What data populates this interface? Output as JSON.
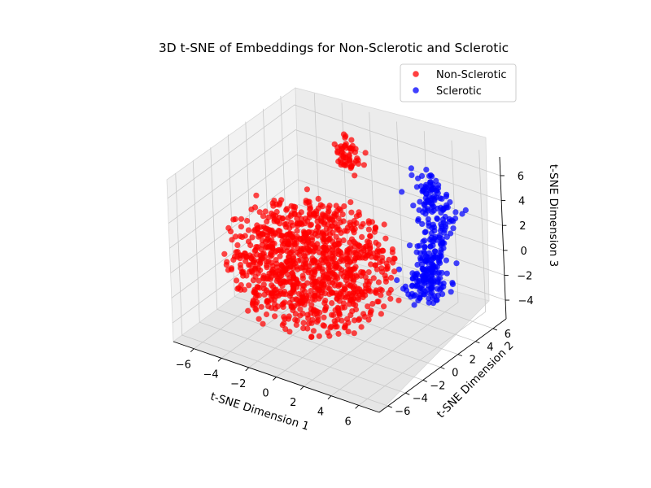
{
  "chart_data": {
    "type": "scatter",
    "title": "3D t-SNE of Embeddings for Non-Sclerotic and Sclerotic",
    "xlabel": "t-SNE Dimension 1",
    "ylabel": "t-SNE Dimension 2",
    "zlabel": "t-SNE Dimension 3",
    "xlim": [
      -7.5,
      7.5
    ],
    "ylim": [
      -7,
      7.5
    ],
    "zlim": [
      -5.5,
      7.5
    ],
    "xticks": [
      -6,
      -4,
      -2,
      0,
      2,
      4,
      6
    ],
    "yticks": [
      -6,
      -4,
      -2,
      0,
      2,
      4,
      6
    ],
    "zticks": [
      -4,
      -2,
      0,
      2,
      4,
      6
    ],
    "grid": true,
    "legend": {
      "position": "top-right",
      "entries": [
        "Non-Sclerotic",
        "Sclerotic"
      ]
    },
    "series": [
      {
        "name": "Non-Sclerotic",
        "color": "#ff0000",
        "approx_count": 1100,
        "distribution": "roughly spherical blob, radius about 6, centered near (x=-1, y=-1, z=0), with a small dense cluster near (x=-3, y=6.5, z=4)",
        "points": [
          [
            -6.2,
            -2.1,
            1.3
          ],
          [
            -5.4,
            1.2,
            -0.8
          ],
          [
            -4.8,
            -4.1,
            2.2
          ],
          [
            -4.1,
            2.8,
            -2.4
          ],
          [
            -3.6,
            -0.5,
            3.6
          ],
          [
            -3.1,
            4.2,
            1.1
          ],
          [
            -2.7,
            -5.2,
            -1.7
          ],
          [
            -2.2,
            0.9,
            -3.9
          ],
          [
            -1.8,
            -2.9,
            4.4
          ],
          [
            -1.3,
            3.4,
            -1.2
          ],
          [
            -0.8,
            -4.6,
            0.6
          ],
          [
            -0.4,
            1.7,
            2.9
          ],
          [
            0.1,
            -1.3,
            -2.8
          ],
          [
            0.6,
            -3.8,
            3.3
          ],
          [
            1.1,
            2.3,
            0.4
          ],
          [
            1.6,
            -5.6,
            -0.9
          ],
          [
            2.1,
            -0.2,
            1.8
          ],
          [
            2.6,
            -2.7,
            -3.1
          ],
          [
            3.1,
            1.1,
            2.6
          ],
          [
            3.6,
            -4.4,
            0.9
          ],
          [
            -5.8,
            0.3,
            3.1
          ],
          [
            -4.4,
            -2.6,
            -3.3
          ],
          [
            -2.4,
            -3.7,
            0.2
          ],
          [
            -0.2,
            -5.9,
            1.6
          ],
          [
            1.4,
            -3.2,
            4.1
          ],
          [
            -3.2,
            6.3,
            4.3
          ],
          [
            -2.8,
            6.7,
            4.9
          ],
          [
            -3.5,
            6.1,
            3.7
          ],
          [
            -2.5,
            6.5,
            4.6
          ],
          [
            -3.0,
            6.9,
            5.2
          ]
        ]
      },
      {
        "name": "Sclerotic",
        "color": "#0000ff",
        "approx_count": 300,
        "distribution": "arc-shaped cluster near (x=3.5, y=5.5, z=0), spanning z from about -4 to 4",
        "points": [
          [
            2.3,
            6.0,
            3.9
          ],
          [
            3.0,
            5.5,
            2.4
          ],
          [
            3.6,
            6.6,
            0.9
          ],
          [
            4.2,
            5.1,
            -0.6
          ],
          [
            3.4,
            4.6,
            -2.1
          ],
          [
            4.6,
            6.1,
            -3.1
          ],
          [
            2.7,
            5.9,
            -1.1
          ],
          [
            3.8,
            4.9,
            1.9
          ],
          [
            4.4,
            6.9,
            -1.9
          ],
          [
            3.1,
            6.4,
            3.1
          ],
          [
            4.9,
            5.6,
            -2.6
          ],
          [
            3.3,
            4.3,
            0.4
          ],
          [
            2.5,
            5.2,
            2.9
          ],
          [
            4.1,
            6.3,
            1.2
          ],
          [
            3.7,
            5.7,
            -3.6
          ]
        ]
      }
    ]
  }
}
